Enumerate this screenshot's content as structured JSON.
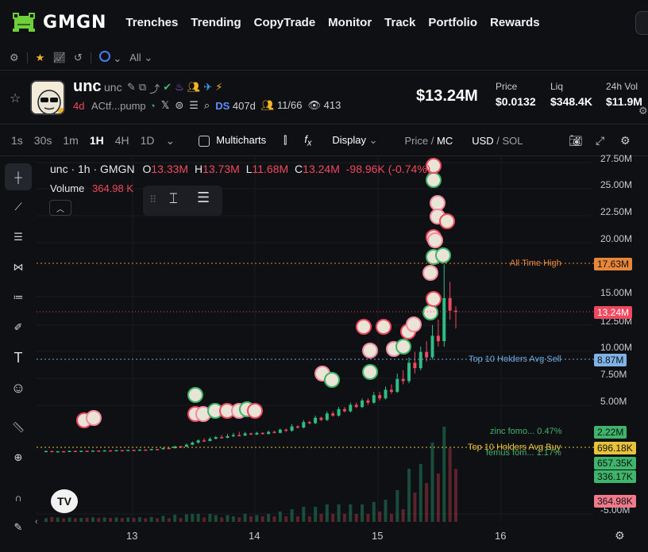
{
  "nav": {
    "brand": "GMGN",
    "links": [
      "Trenches",
      "Trending",
      "CopyTrade",
      "Monitor",
      "Track",
      "Portfolio",
      "Rewards"
    ]
  },
  "filters": {
    "all_label": "All"
  },
  "token": {
    "name": "unc",
    "symbol": "unc",
    "age": "4d",
    "address": "ACtf...pump",
    "ds_label": "DS",
    "ds_age": "407d",
    "holders_ratio": "11/66",
    "watchers": "413",
    "market_cap": "$13.24M",
    "stats": [
      {
        "label": "Price",
        "value": "$0.0132"
      },
      {
        "label": "Liq",
        "value": "$348.4K"
      },
      {
        "label": "24h Vol",
        "value": "$11.9M"
      }
    ]
  },
  "toolbar": {
    "timeframes": [
      "1s",
      "30s",
      "1m",
      "1H",
      "4H",
      "1D"
    ],
    "active_timeframe": "1H",
    "multicharts": "Multicharts",
    "display": "Display",
    "price_label": "Price",
    "mc_label": "MC",
    "usd_label": "USD",
    "sol_label": "SOL"
  },
  "legend": {
    "title": "unc · 1h · GMGN",
    "o_label": "O",
    "o": "13.33M",
    "h_label": "H",
    "h": "13.73M",
    "l_label": "L",
    "l": "11.68M",
    "c_label": "C",
    "c": "13.24M",
    "change": "-98.96K (-0.74%)",
    "volume_label": "Volume",
    "volume": "364.98 K"
  },
  "chart_data": {
    "type": "candlestick",
    "y_ticks": [
      "27.50M",
      "25.00M",
      "22.50M",
      "20.00M",
      "15.00M",
      "12.50M",
      "10.00M",
      "7.50M",
      "5.00M",
      "-5.00M"
    ],
    "x_ticks": [
      "13",
      "14",
      "15",
      "16"
    ],
    "price_lines": [
      {
        "label": "All Time High",
        "value": "17.63M",
        "color": "#e8873a"
      },
      {
        "label": "Top 10 Holders Avg Sell",
        "value": "8.87M",
        "color": "#6fa8dc"
      },
      {
        "label": "zinc fomo... 0.47%",
        "value": "2.22M",
        "color": "#3fb56b"
      },
      {
        "label": "Top 10 Holders Avg Buy",
        "value": "696.18K",
        "color": "#e8c23a"
      },
      {
        "label": "femus fom... 1.17%",
        "value": "657.35K",
        "color": "#3fb56b"
      },
      {
        "label": "",
        "value": "336.17K",
        "color": "#3fb56b"
      }
    ],
    "current_price": "13.24M",
    "current_volume": "364.98K",
    "candles_mc_millions": [
      [
        0.3,
        0.32,
        0.35,
        0.28
      ],
      [
        0.32,
        0.25,
        0.34,
        0.22
      ],
      [
        0.25,
        0.3,
        0.31,
        0.2
      ],
      [
        0.3,
        0.28,
        0.32,
        0.26
      ],
      [
        0.28,
        0.33,
        0.36,
        0.27
      ],
      [
        0.33,
        0.31,
        0.35,
        0.29
      ],
      [
        0.31,
        0.34,
        0.37,
        0.3
      ],
      [
        0.34,
        0.3,
        0.35,
        0.28
      ],
      [
        0.3,
        0.36,
        0.38,
        0.29
      ],
      [
        0.36,
        0.33,
        0.37,
        0.31
      ],
      [
        0.33,
        0.38,
        0.4,
        0.32
      ],
      [
        0.38,
        0.35,
        0.39,
        0.34
      ],
      [
        0.35,
        0.4,
        0.42,
        0.34
      ],
      [
        0.4,
        0.37,
        0.41,
        0.36
      ],
      [
        0.37,
        0.42,
        0.44,
        0.36
      ],
      [
        0.42,
        0.39,
        0.43,
        0.38
      ],
      [
        0.39,
        0.45,
        0.47,
        0.38
      ],
      [
        0.45,
        0.43,
        0.46,
        0.41
      ],
      [
        0.43,
        0.5,
        0.52,
        0.42
      ],
      [
        0.5,
        0.48,
        0.51,
        0.46
      ],
      [
        0.48,
        0.6,
        0.62,
        0.47
      ],
      [
        0.6,
        0.58,
        0.66,
        0.55
      ],
      [
        0.58,
        0.75,
        0.78,
        0.56
      ],
      [
        0.75,
        0.72,
        0.8,
        0.7
      ],
      [
        0.72,
        0.9,
        1.0,
        0.7
      ],
      [
        0.9,
        1.1,
        1.2,
        0.85
      ],
      [
        1.1,
        1.3,
        1.4,
        1.0
      ],
      [
        1.3,
        1.25,
        1.5,
        1.2
      ],
      [
        1.25,
        1.45,
        1.6,
        1.2
      ],
      [
        1.45,
        1.6,
        1.7,
        1.4
      ],
      [
        1.6,
        1.55,
        1.8,
        1.5
      ],
      [
        1.55,
        1.7,
        1.9,
        1.5
      ],
      [
        1.7,
        1.8,
        2.0,
        1.6
      ],
      [
        1.8,
        1.75,
        2.1,
        1.7
      ],
      [
        1.75,
        1.95,
        2.1,
        1.7
      ],
      [
        1.95,
        1.85,
        2.0,
        1.8
      ],
      [
        1.85,
        2.0,
        2.1,
        1.8
      ],
      [
        2.0,
        1.9,
        2.05,
        1.85
      ],
      [
        1.9,
        2.1,
        2.2,
        1.85
      ],
      [
        2.1,
        2.0,
        2.2,
        1.95
      ],
      [
        2.0,
        2.3,
        2.4,
        1.95
      ],
      [
        2.3,
        2.2,
        2.4,
        2.1
      ],
      [
        2.2,
        2.6,
        2.8,
        2.1
      ],
      [
        2.6,
        2.5,
        2.7,
        2.4
      ],
      [
        2.5,
        3.0,
        3.2,
        2.4
      ],
      [
        3.0,
        2.9,
        3.1,
        2.8
      ],
      [
        2.9,
        3.4,
        3.6,
        2.8
      ],
      [
        3.4,
        3.2,
        3.5,
        3.1
      ],
      [
        3.2,
        3.8,
        4.0,
        3.1
      ],
      [
        3.8,
        3.6,
        4.0,
        3.5
      ],
      [
        3.6,
        4.2,
        4.4,
        3.5
      ],
      [
        4.2,
        4.0,
        4.4,
        3.9
      ],
      [
        4.0,
        4.6,
        4.8,
        3.9
      ],
      [
        4.6,
        4.4,
        4.8,
        4.3
      ],
      [
        4.4,
        5.0,
        5.2,
        4.3
      ],
      [
        5.0,
        4.8,
        5.2,
        4.6
      ],
      [
        4.8,
        5.5,
        5.8,
        4.7
      ],
      [
        5.5,
        5.2,
        5.8,
        5.0
      ],
      [
        5.2,
        6.0,
        6.3,
        5.1
      ],
      [
        6.0,
        5.8,
        6.5,
        5.6
      ],
      [
        5.8,
        7.0,
        7.5,
        5.7
      ],
      [
        7.0,
        6.8,
        7.8,
        6.5
      ],
      [
        6.8,
        8.5,
        9.0,
        6.6
      ],
      [
        8.5,
        8.0,
        9.5,
        7.5
      ],
      [
        8.0,
        9.5,
        10.0,
        7.8
      ],
      [
        9.5,
        9.0,
        10.5,
        8.6
      ],
      [
        9.0,
        11.0,
        12.0,
        8.8
      ],
      [
        11.0,
        10.5,
        12.5,
        10.0
      ],
      [
        10.5,
        14.5,
        17.63,
        10.0
      ],
      [
        14.5,
        13.33,
        16.0,
        12.5
      ],
      [
        13.33,
        13.24,
        13.73,
        11.68
      ]
    ]
  }
}
